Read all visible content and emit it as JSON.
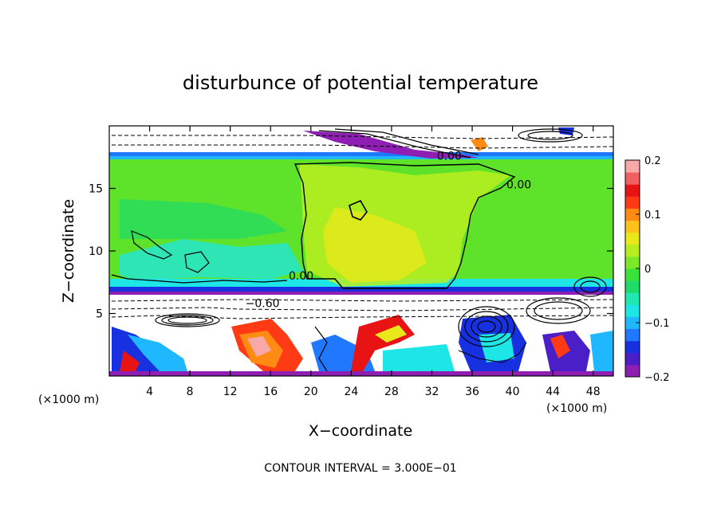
{
  "chart_data": {
    "type": "heatmap",
    "title": "disturbunce of potential temperature",
    "xlabel": "X−coordinate",
    "ylabel": "Z−coordinate",
    "x_unit_left": "(×1000 m)",
    "x_unit_right": "(×1000 m)",
    "xlim": [
      0,
      50
    ],
    "ylim": [
      0,
      20
    ],
    "xticks": [
      4,
      8,
      12,
      16,
      20,
      24,
      28,
      32,
      36,
      40,
      44,
      48
    ],
    "yticks": [
      5,
      10,
      15
    ],
    "colorbar": {
      "range": [
        -0.2,
        0.2
      ],
      "ticks": [
        {
          "value": 0.2,
          "label": "0.2"
        },
        {
          "value": 0.1,
          "label": "0.1"
        },
        {
          "value": 0,
          "label": "0"
        },
        {
          "value": -0.1,
          "label": "−0.1"
        },
        {
          "value": -0.2,
          "label": "−0.2"
        }
      ],
      "colors": [
        "#8e1fb2",
        "#4b1fc8",
        "#1730e0",
        "#1f78ff",
        "#1fb8ff",
        "#1fe6e6",
        "#1fe8b0",
        "#1fdc6a",
        "#3ae33a",
        "#7ce82a",
        "#b8ee20",
        "#e8e81a",
        "#ffc21a",
        "#ff8a14",
        "#ff3a14",
        "#e81414",
        "#f06060",
        "#f8a8a8"
      ]
    },
    "contour_labels": [
      {
        "text": "−0.60",
        "x": 13.5,
        "z": 5.5
      },
      {
        "text": "0.00",
        "x": 17.8,
        "z": 7.7
      },
      {
        "text": "0.00",
        "x": 39.4,
        "z": 15.0
      },
      {
        "text": "0.00",
        "x": 32.5,
        "z": 17.3
      }
    ],
    "footer": "CONTOUR INTERVAL = 3.000E−01"
  }
}
